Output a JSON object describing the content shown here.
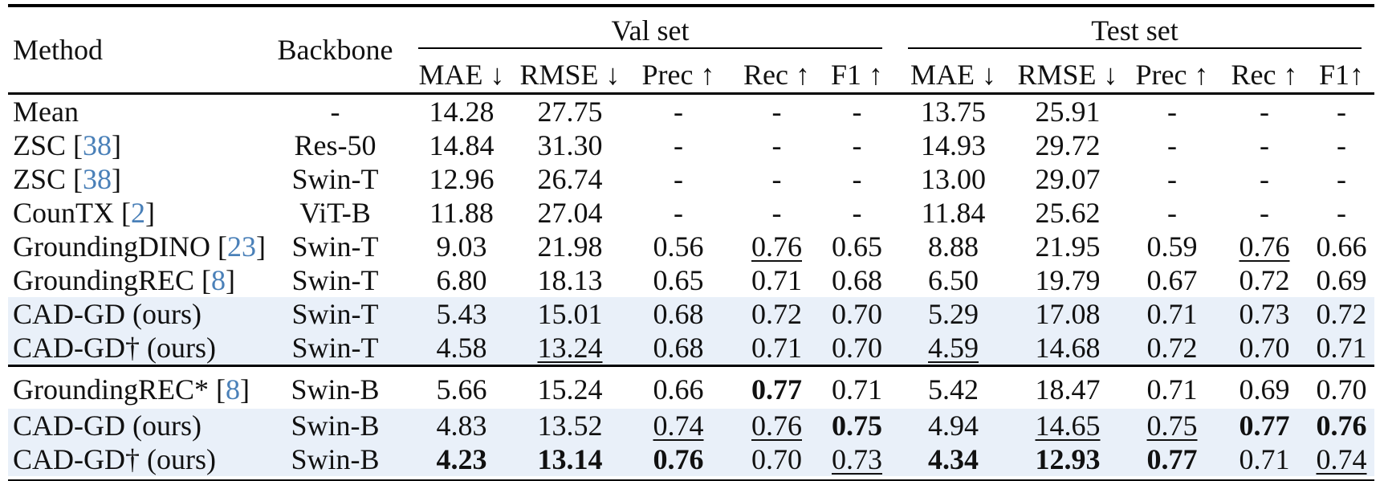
{
  "colors": {
    "citation_blue": "#4a80b8",
    "row_highlight": "#e9f0f9",
    "text": "#111111",
    "rule": "#000000"
  },
  "header": {
    "method": "Method",
    "backbone": "Backbone",
    "groups": [
      {
        "label": "Val set",
        "metrics": [
          "MAE ↓",
          "RMSE ↓",
          "Prec ↑",
          "Rec ↑",
          "F1 ↑"
        ]
      },
      {
        "label": "Test set",
        "metrics": [
          "MAE ↓",
          "RMSE ↓",
          "Prec ↑",
          "Rec ↑",
          "F1↑"
        ]
      }
    ]
  },
  "rows": [
    {
      "method": "Mean",
      "cite": null,
      "backbone": "-",
      "highlight": false,
      "section_start": false,
      "values": [
        {
          "v": "14.28"
        },
        {
          "v": "27.75"
        },
        {
          "v": "-"
        },
        {
          "v": "-"
        },
        {
          "v": "-"
        },
        {
          "v": "13.75"
        },
        {
          "v": "25.91"
        },
        {
          "v": "-"
        },
        {
          "v": "-"
        },
        {
          "v": "-"
        }
      ]
    },
    {
      "method": "ZSC",
      "cite": "38",
      "backbone": "Res-50",
      "highlight": false,
      "section_start": false,
      "values": [
        {
          "v": "14.84"
        },
        {
          "v": "31.30"
        },
        {
          "v": "-"
        },
        {
          "v": "-"
        },
        {
          "v": "-"
        },
        {
          "v": "14.93"
        },
        {
          "v": "29.72"
        },
        {
          "v": "-"
        },
        {
          "v": "-"
        },
        {
          "v": "-"
        }
      ]
    },
    {
      "method": "ZSC",
      "cite": "38",
      "backbone": "Swin-T",
      "highlight": false,
      "section_start": false,
      "values": [
        {
          "v": "12.96"
        },
        {
          "v": "26.74"
        },
        {
          "v": "-"
        },
        {
          "v": "-"
        },
        {
          "v": "-"
        },
        {
          "v": "13.00"
        },
        {
          "v": "29.07"
        },
        {
          "v": "-"
        },
        {
          "v": "-"
        },
        {
          "v": "-"
        }
      ]
    },
    {
      "method": "CounTX",
      "cite": "2",
      "backbone": "ViT-B",
      "highlight": false,
      "section_start": false,
      "values": [
        {
          "v": "11.88"
        },
        {
          "v": "27.04"
        },
        {
          "v": "-"
        },
        {
          "v": "-"
        },
        {
          "v": "-"
        },
        {
          "v": "11.84"
        },
        {
          "v": "25.62"
        },
        {
          "v": "-"
        },
        {
          "v": "-"
        },
        {
          "v": "-"
        }
      ]
    },
    {
      "method": "GroundingDINO",
      "cite": "23",
      "backbone": "Swin-T",
      "highlight": false,
      "section_start": false,
      "values": [
        {
          "v": "9.03"
        },
        {
          "v": "21.98"
        },
        {
          "v": "0.56"
        },
        {
          "v": "0.76",
          "style": "u"
        },
        {
          "v": "0.65"
        },
        {
          "v": "8.88"
        },
        {
          "v": "21.95"
        },
        {
          "v": "0.59"
        },
        {
          "v": "0.76",
          "style": "u"
        },
        {
          "v": "0.66"
        }
      ]
    },
    {
      "method": "GroundingREC",
      "cite": "8",
      "backbone": "Swin-T",
      "highlight": false,
      "section_start": false,
      "values": [
        {
          "v": "6.80"
        },
        {
          "v": "18.13"
        },
        {
          "v": "0.65"
        },
        {
          "v": "0.71"
        },
        {
          "v": "0.68"
        },
        {
          "v": "6.50"
        },
        {
          "v": "19.79"
        },
        {
          "v": "0.67"
        },
        {
          "v": "0.72"
        },
        {
          "v": "0.69"
        }
      ]
    },
    {
      "method": "CAD-GD (ours)",
      "cite": null,
      "backbone": "Swin-T",
      "highlight": true,
      "section_start": false,
      "values": [
        {
          "v": "5.43"
        },
        {
          "v": "15.01"
        },
        {
          "v": "0.68"
        },
        {
          "v": "0.72"
        },
        {
          "v": "0.70"
        },
        {
          "v": "5.29"
        },
        {
          "v": "17.08"
        },
        {
          "v": "0.71"
        },
        {
          "v": "0.73"
        },
        {
          "v": "0.72"
        }
      ]
    },
    {
      "method": "CAD-GD† (ours)",
      "cite": null,
      "backbone": "Swin-T",
      "highlight": true,
      "section_start": false,
      "values": [
        {
          "v": "4.58"
        },
        {
          "v": "13.24",
          "style": "u"
        },
        {
          "v": "0.68"
        },
        {
          "v": "0.71"
        },
        {
          "v": "0.70"
        },
        {
          "v": "4.59",
          "style": "u"
        },
        {
          "v": "14.68"
        },
        {
          "v": "0.72"
        },
        {
          "v": "0.70"
        },
        {
          "v": "0.71"
        }
      ]
    },
    {
      "method": "GroundingREC*",
      "cite": "8",
      "backbone": "Swin-B",
      "highlight": false,
      "section_start": true,
      "values": [
        {
          "v": "5.66"
        },
        {
          "v": "15.24"
        },
        {
          "v": "0.66"
        },
        {
          "v": "0.77",
          "style": "b"
        },
        {
          "v": "0.71"
        },
        {
          "v": "5.42"
        },
        {
          "v": "18.47"
        },
        {
          "v": "0.71"
        },
        {
          "v": "0.69"
        },
        {
          "v": "0.70"
        }
      ]
    },
    {
      "method": "CAD-GD (ours)",
      "cite": null,
      "backbone": "Swin-B",
      "highlight": true,
      "section_start": false,
      "values": [
        {
          "v": "4.83"
        },
        {
          "v": "13.52"
        },
        {
          "v": "0.74",
          "style": "u"
        },
        {
          "v": "0.76",
          "style": "u"
        },
        {
          "v": "0.75",
          "style": "b"
        },
        {
          "v": "4.94"
        },
        {
          "v": "14.65",
          "style": "u"
        },
        {
          "v": "0.75",
          "style": "u"
        },
        {
          "v": "0.77",
          "style": "b"
        },
        {
          "v": "0.76",
          "style": "b"
        }
      ]
    },
    {
      "method": "CAD-GD† (ours)",
      "cite": null,
      "backbone": "Swin-B",
      "highlight": true,
      "section_start": false,
      "values": [
        {
          "v": "4.23",
          "style": "b"
        },
        {
          "v": "13.14",
          "style": "b"
        },
        {
          "v": "0.76",
          "style": "b"
        },
        {
          "v": "0.70"
        },
        {
          "v": "0.73",
          "style": "u"
        },
        {
          "v": "4.34",
          "style": "b"
        },
        {
          "v": "12.93",
          "style": "b"
        },
        {
          "v": "0.77",
          "style": "b"
        },
        {
          "v": "0.71"
        },
        {
          "v": "0.74",
          "style": "u"
        }
      ]
    }
  ]
}
